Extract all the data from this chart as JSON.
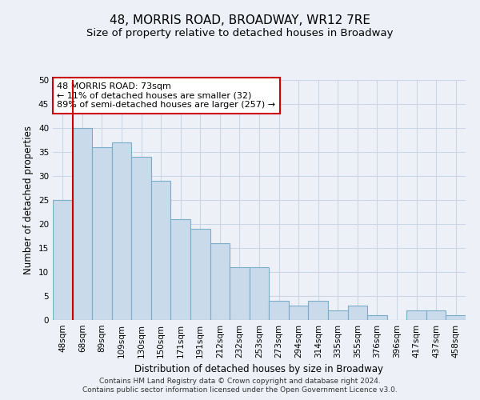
{
  "title": "48, MORRIS ROAD, BROADWAY, WR12 7RE",
  "subtitle": "Size of property relative to detached houses in Broadway",
  "xlabel": "Distribution of detached houses by size in Broadway",
  "ylabel": "Number of detached properties",
  "bin_labels": [
    "48sqm",
    "68sqm",
    "89sqm",
    "109sqm",
    "130sqm",
    "150sqm",
    "171sqm",
    "191sqm",
    "212sqm",
    "232sqm",
    "253sqm",
    "273sqm",
    "294sqm",
    "314sqm",
    "335sqm",
    "355sqm",
    "376sqm",
    "396sqm",
    "417sqm",
    "437sqm",
    "458sqm"
  ],
  "bar_values": [
    25,
    40,
    36,
    37,
    34,
    29,
    21,
    19,
    16,
    11,
    11,
    4,
    3,
    4,
    2,
    3,
    1,
    0,
    2,
    2,
    1
  ],
  "bar_color": "#c9daea",
  "bar_edge_color": "#7aaec8",
  "vline_x": 1,
  "vline_color": "#cc0000",
  "annotation_box_text": "48 MORRIS ROAD: 73sqm\n← 11% of detached houses are smaller (32)\n89% of semi-detached houses are larger (257) →",
  "annotation_box_facecolor": "#ffffff",
  "annotation_box_edgecolor": "#cc0000",
  "ylim": [
    0,
    50
  ],
  "yticks": [
    0,
    5,
    10,
    15,
    20,
    25,
    30,
    35,
    40,
    45,
    50
  ],
  "grid_color": "#ccd5e5",
  "background_color": "#edf1f7",
  "footer_line1": "Contains HM Land Registry data © Crown copyright and database right 2024.",
  "footer_line2": "Contains public sector information licensed under the Open Government Licence v3.0.",
  "title_fontsize": 11,
  "subtitle_fontsize": 9.5,
  "axis_label_fontsize": 8.5,
  "tick_fontsize": 7.5,
  "annotation_fontsize": 8,
  "footer_fontsize": 6.5
}
